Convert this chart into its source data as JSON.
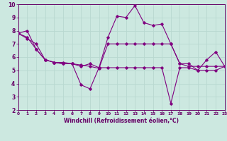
{
  "xlabel": "Windchill (Refroidissement éolien,°C)",
  "background_color": "#cce8e0",
  "line_color": "#800080",
  "grid_color": "#b8d8d0",
  "axis_bg": "#cce8e0",
  "xlim": [
    0,
    23
  ],
  "ylim": [
    2,
    10
  ],
  "xticks": [
    0,
    1,
    2,
    3,
    4,
    5,
    6,
    7,
    8,
    9,
    10,
    11,
    12,
    13,
    14,
    15,
    16,
    17,
    18,
    19,
    20,
    21,
    22,
    23
  ],
  "yticks": [
    2,
    3,
    4,
    5,
    6,
    7,
    8,
    9,
    10
  ],
  "series": [
    [
      7.8,
      8.0,
      6.6,
      5.8,
      5.6,
      5.5,
      5.5,
      5.3,
      5.5,
      5.2,
      7.5,
      9.1,
      9.0,
      9.9,
      8.6,
      8.4,
      8.5,
      7.0,
      5.5,
      5.5,
      5.0,
      5.8,
      6.4,
      5.3
    ],
    [
      7.8,
      7.5,
      6.6,
      5.8,
      5.6,
      5.6,
      5.5,
      5.4,
      5.3,
      5.15,
      7.0,
      7.0,
      7.0,
      7.0,
      7.0,
      7.0,
      7.0,
      7.0,
      5.5,
      5.3,
      5.3,
      5.3,
      5.3,
      5.3
    ],
    [
      7.8,
      7.4,
      7.0,
      5.8,
      5.6,
      5.5,
      5.5,
      3.9,
      3.6,
      5.2,
      5.2,
      5.2,
      5.2,
      5.2,
      5.2,
      5.2,
      5.2,
      2.5,
      5.2,
      5.2,
      5.0,
      5.0,
      5.0,
      5.3
    ]
  ]
}
